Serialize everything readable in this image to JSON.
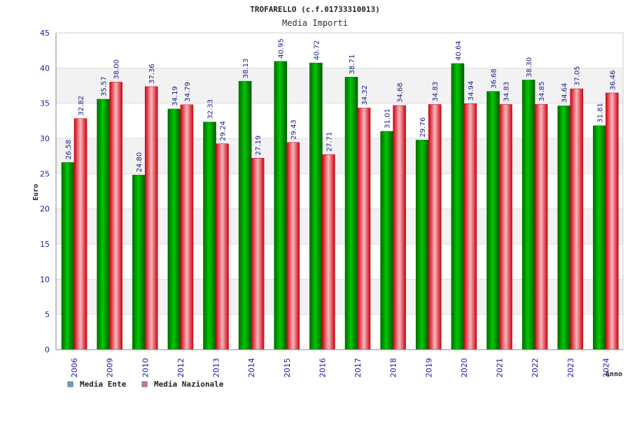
{
  "chart_data": {
    "type": "bar",
    "title": "TROFARELLO (c.f.01733310013)",
    "subtitle": "Media Importi",
    "xlabel": "Anno",
    "ylabel": "Euro",
    "ylim": [
      0,
      45
    ],
    "yticks": [
      "0",
      "5",
      "10",
      "15",
      "20",
      "25",
      "30",
      "35",
      "40",
      "45"
    ],
    "grid": true,
    "legend_position": "bottom-left",
    "categories": [
      "2006",
      "2009",
      "2010",
      "2012",
      "2013",
      "2014",
      "2015",
      "2016",
      "2017",
      "2018",
      "2019",
      "2020",
      "2021",
      "2022",
      "2023",
      "2024"
    ],
    "series": [
      {
        "name": "Media Ente",
        "color": "#00b400",
        "legend_color": "#5aa0e6",
        "values": [
          26.58,
          35.57,
          24.8,
          34.19,
          32.33,
          38.13,
          40.95,
          40.72,
          38.71,
          31.01,
          29.76,
          40.64,
          36.68,
          38.3,
          34.64,
          31.81
        ],
        "labels": [
          "26.58",
          "35.57",
          "24.80",
          "34.19",
          "32.33",
          "38.13",
          "40.95",
          "40.72",
          "38.71",
          "31.01",
          "29.76",
          "40.64",
          "36.68",
          "38.30",
          "34.64",
          "31.81"
        ]
      },
      {
        "name": "Media Nazionale",
        "color": "#e8202a",
        "legend_color": "#e070a0",
        "values": [
          32.82,
          38.0,
          37.36,
          34.79,
          29.24,
          27.19,
          29.43,
          27.71,
          34.32,
          34.68,
          34.83,
          34.94,
          34.83,
          34.85,
          37.05,
          36.46
        ],
        "labels": [
          "32.82",
          "38.00",
          "37.36",
          "34.79",
          "29.24",
          "27.19",
          "29.43",
          "27.71",
          "34.32",
          "34.68",
          "34.83",
          "34.94",
          "34.83",
          "34.85",
          "37.05",
          "36.46"
        ]
      }
    ]
  }
}
